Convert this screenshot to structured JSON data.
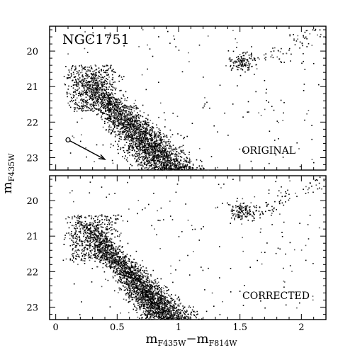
{
  "chart_data": {
    "type": "scatter",
    "title": "NGC1751",
    "xlabel": {
      "base": "m",
      "sub1": "F435W",
      "minus": "−",
      "sub2": "F814W"
    },
    "ylabel": {
      "base": "m",
      "sub": "F435W"
    },
    "xlim": [
      -0.05,
      2.2
    ],
    "ylim": [
      23.35,
      19.3
    ],
    "y_reversed": true,
    "xticks": [
      "0",
      "0.5",
      "1",
      "1.5",
      "2"
    ],
    "yticks": [
      "20",
      "21",
      "22",
      "23"
    ],
    "panels": [
      {
        "label": "ORIGINAL",
        "vector": {
          "from": [
            0.1,
            22.5
          ],
          "to": [
            0.4,
            23.05
          ]
        },
        "sequence": {
          "main": "upper main sequence from (0.22, 20.6) down to (0.95, 23.35)",
          "red_clump": {
            "x": 1.52,
            "y": 20.3
          }
        },
        "point_count_approx": 3400
      },
      {
        "label": "CORRECTED",
        "sequence": {
          "main": "upper main sequence from (0.22, 20.6) down to (0.95, 23.35)",
          "red_clump": {
            "x": 1.52,
            "y": 20.3
          }
        },
        "point_count_approx": 3400
      }
    ]
  }
}
